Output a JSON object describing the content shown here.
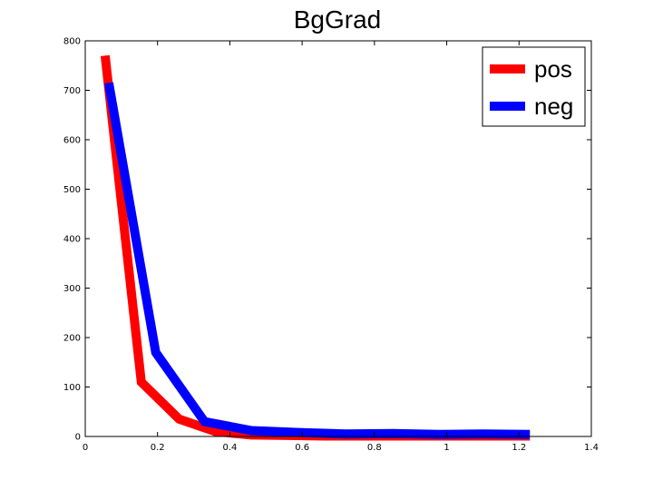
{
  "chart_data": {
    "type": "line",
    "title": "BgGrad",
    "xlabel": "",
    "ylabel": "",
    "xlim": [
      0,
      1.4
    ],
    "ylim": [
      0,
      800
    ],
    "xticks": [
      0,
      0.2,
      0.4,
      0.6,
      0.8,
      1,
      1.2,
      1.4
    ],
    "yticks": [
      0,
      100,
      200,
      300,
      400,
      500,
      600,
      700,
      800
    ],
    "xtick_labels": [
      "0",
      "0.2",
      "0.4",
      "0.6",
      "0.8",
      "1",
      "1.2",
      "1.4"
    ],
    "ytick_labels": [
      "0",
      "100",
      "200",
      "300",
      "400",
      "500",
      "600",
      "700",
      "800"
    ],
    "grid": false,
    "legend_position": "top-right",
    "series": [
      {
        "name": "pos",
        "color": "#ff0000",
        "x": [
          0.055,
          0.155,
          0.26,
          0.36,
          0.46,
          0.56,
          0.66,
          0.76,
          0.86,
          0.96,
          1.06,
          1.16,
          1.23
        ],
        "y": [
          770,
          110,
          35,
          10,
          3,
          2,
          1,
          1,
          1,
          1,
          1,
          1,
          1
        ]
      },
      {
        "name": "neg",
        "color": "#0000ff",
        "x": [
          0.065,
          0.195,
          0.33,
          0.46,
          0.59,
          0.72,
          0.85,
          0.98,
          1.1,
          1.23
        ],
        "y": [
          715,
          170,
          30,
          12,
          8,
          5,
          6,
          4,
          5,
          4
        ]
      }
    ]
  }
}
